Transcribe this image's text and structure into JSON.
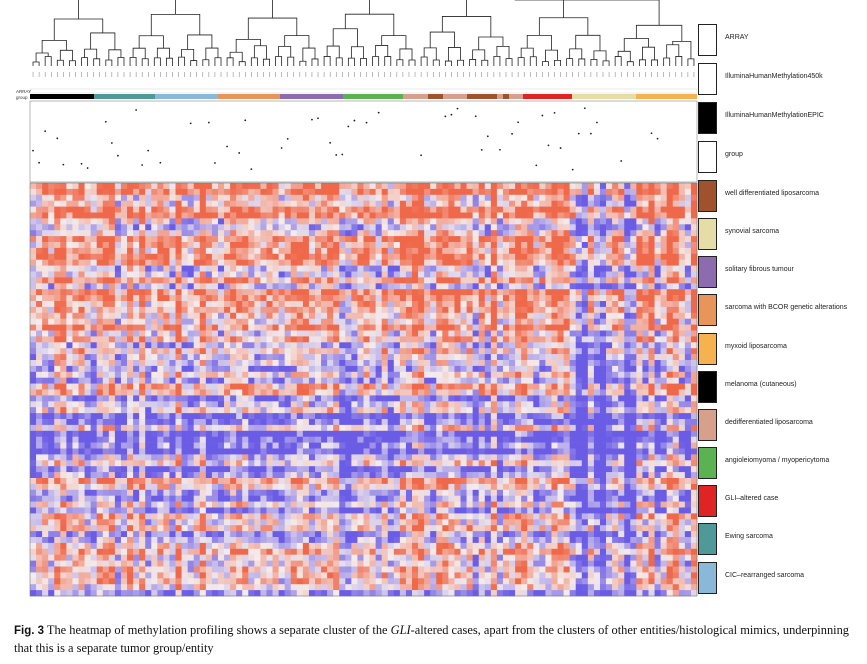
{
  "tracks": {
    "array_label": "ARRAY",
    "group_label": "group"
  },
  "legend": [
    {
      "label": "ARRAY",
      "color": "#ffffff"
    },
    {
      "label": "IlluminaHumanMethylation450k",
      "color": "#ffffff"
    },
    {
      "label": "IlluminaHumanMethylationEPIC",
      "color": "#000000"
    },
    {
      "label": "group",
      "color": "#ffffff"
    },
    {
      "label": "well differentiated liposarcoma",
      "color": "#a0522d"
    },
    {
      "label": "synovial sarcoma",
      "color": "#e6dca6"
    },
    {
      "label": "solitary fibrous tumour",
      "color": "#8c6bb1"
    },
    {
      "label": "sarcoma with BCOR genetic alterations",
      "color": "#e8955a"
    },
    {
      "label": "myxoid liposarcoma",
      "color": "#f5b24e"
    },
    {
      "label": "melanoma (cutaneous)",
      "color": "#000000"
    },
    {
      "label": "dedifferentiated liposarcoma",
      "color": "#d7a08c"
    },
    {
      "label": "angioleiomyoma / myopericytoma",
      "color": "#5ab350"
    },
    {
      "label": "GLI–altered case",
      "color": "#e02424"
    },
    {
      "label": "Ewing sarcoma",
      "color": "#4f9a99"
    },
    {
      "label": "CIC–rearranged sarcoma",
      "color": "#8ab8d8"
    }
  ],
  "caption": {
    "lead": "Fig. 3",
    "text_before": "  The heatmap of methylation profiling shows a separate cluster of the ",
    "gene": "GLI",
    "text_after": "-altered cases, apart from the clusters of other entities/histological mimics, underpinning that this is a separate tumor group/entity"
  },
  "colors": {
    "high": "#f0684a",
    "mid": "#f4ecec",
    "low": "#6b5ce6"
  }
}
